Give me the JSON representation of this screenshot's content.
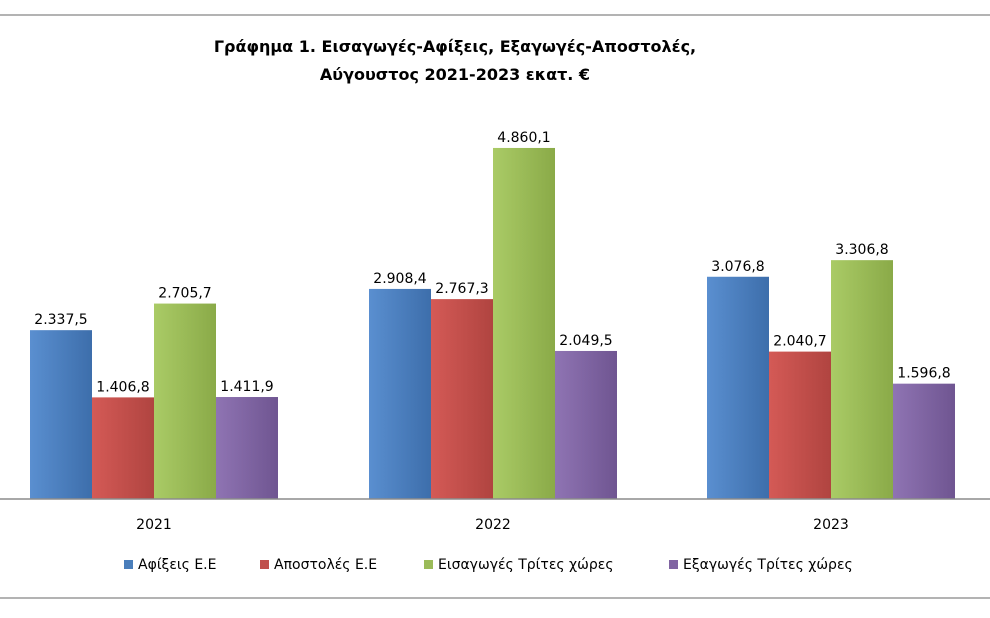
{
  "chart_data": {
    "type": "bar",
    "title_lines": [
      "Γράφημα 1. Εισαγωγές-Αφίξεις, Εξαγωγές-Αποστολές,",
      "Αύγουστος 2021-2023 εκατ. €"
    ],
    "categories": [
      "2021",
      "2022",
      "2023"
    ],
    "series": [
      {
        "name": "Αφίξεις Ε.Ε",
        "color": "#4a7ebb",
        "values": [
          2337.5,
          2908.4,
          3076.8
        ],
        "labels": [
          "2.337,5",
          "2.908,4",
          "3.076,8"
        ]
      },
      {
        "name": "Αποστολές  Ε.Ε",
        "color": "#c0504d",
        "values": [
          1406.8,
          2767.3,
          2040.7
        ],
        "labels": [
          "1.406,8",
          "2.767,3",
          "2.040,7"
        ]
      },
      {
        "name": "Εισαγωγές Τρίτες χώρες",
        "color": "#9bbb59",
        "values": [
          2705.7,
          4860.1,
          3306.8
        ],
        "labels": [
          "2.705,7",
          "4.860,1",
          "3.306,8"
        ]
      },
      {
        "name": "Εξαγωγές Τρίτες χώρες",
        "color": "#8064a2",
        "values": [
          1411.9,
          2049.5,
          1596.8
        ],
        "labels": [
          "1.411,9",
          "2.049,5",
          "1.596,8"
        ]
      }
    ],
    "ylim": [
      0,
      5000
    ],
    "grid": false,
    "legend_position": "bottom"
  }
}
